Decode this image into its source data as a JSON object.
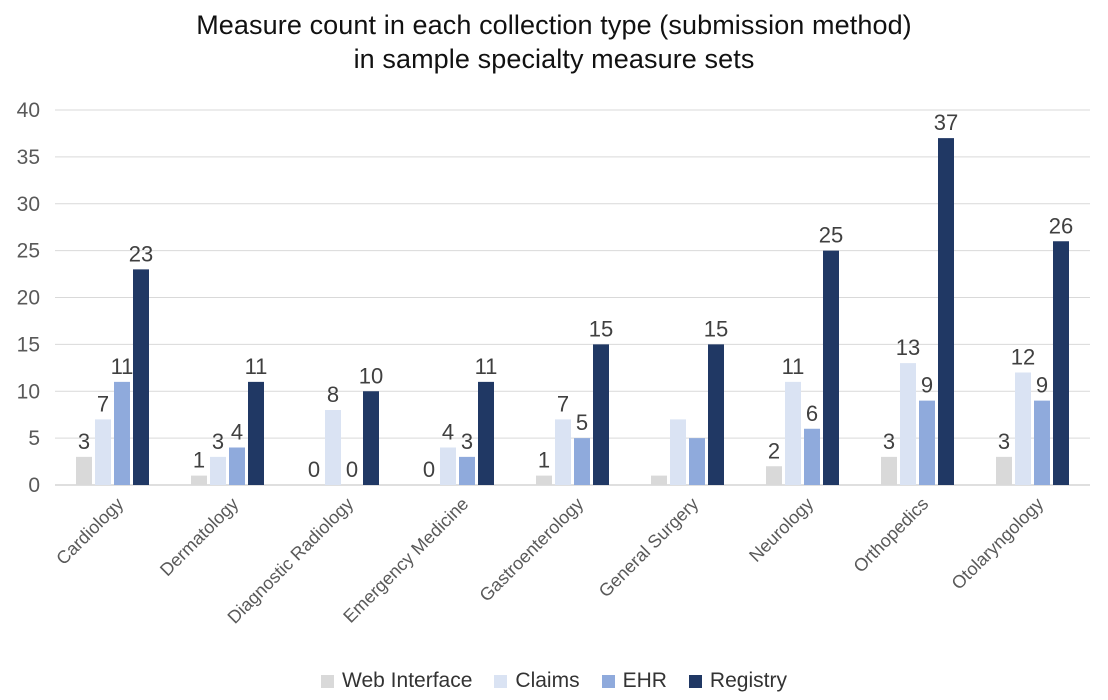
{
  "chart_data": {
    "type": "bar",
    "title_lines": [
      "Measure count in each collection type (submission method)",
      "in sample specialty measure sets"
    ],
    "categories": [
      "Cardiology",
      "Dermatology",
      "Diagnostic Radiology",
      "Emergency Medicine",
      "Gastroenterology",
      "General Surgery",
      "Neurology",
      "Orthopedics",
      "Otolaryngology"
    ],
    "series": [
      {
        "name": "Web Interface",
        "color": "#d9d9d9",
        "values": [
          3,
          1,
          0,
          0,
          1,
          1,
          2,
          3,
          3
        ]
      },
      {
        "name": "Claims",
        "color": "#dae3f3",
        "values": [
          7,
          3,
          8,
          4,
          7,
          7,
          11,
          13,
          12
        ]
      },
      {
        "name": "EHR",
        "color": "#8faadc",
        "values": [
          11,
          4,
          0,
          3,
          5,
          5,
          6,
          9,
          9
        ]
      },
      {
        "name": "Registry",
        "color": "#203864",
        "values": [
          23,
          11,
          10,
          11,
          15,
          15,
          25,
          37,
          26
        ]
      }
    ],
    "data_label_visibility": [
      [
        true,
        true,
        true,
        true
      ],
      [
        true,
        true,
        true,
        true
      ],
      [
        true,
        true,
        true,
        true
      ],
      [
        true,
        true,
        true,
        true
      ],
      [
        true,
        true,
        true,
        true
      ],
      [
        false,
        false,
        false,
        true
      ],
      [
        true,
        true,
        true,
        true
      ],
      [
        true,
        true,
        true,
        true
      ],
      [
        true,
        true,
        true,
        true
      ]
    ],
    "y_ticks": [
      "0",
      "5",
      "10",
      "15",
      "20",
      "25",
      "30",
      "35",
      "40"
    ],
    "ylim": [
      0,
      40
    ],
    "grid": true,
    "legend_position": "bottom"
  }
}
